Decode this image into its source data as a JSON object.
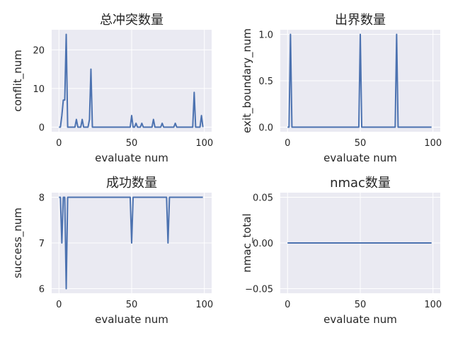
{
  "chart_data": [
    {
      "type": "line",
      "title": "总冲突数量",
      "xlabel": "evaluate num",
      "ylabel": "conflit_num",
      "xlim": [
        -5,
        105
      ],
      "ylim": [
        -1.2,
        25.2
      ],
      "xticks": [
        0,
        50,
        100
      ],
      "xtick_labels": [
        "0",
        "50",
        "100"
      ],
      "yticks": [
        0,
        10,
        20
      ],
      "ytick_labels": [
        "0",
        "10",
        "20"
      ],
      "grid": true,
      "color": "#4c72b0",
      "x": [
        0,
        1,
        2,
        3,
        4,
        5,
        6,
        7,
        8,
        9,
        10,
        11,
        12,
        13,
        14,
        15,
        16,
        17,
        18,
        19,
        20,
        21,
        22,
        23,
        24,
        25,
        26,
        27,
        28,
        29,
        30,
        31,
        32,
        33,
        34,
        35,
        36,
        37,
        38,
        39,
        40,
        41,
        42,
        43,
        44,
        45,
        46,
        47,
        48,
        49,
        50,
        51,
        52,
        53,
        54,
        55,
        56,
        57,
        58,
        59,
        60,
        61,
        62,
        63,
        64,
        65,
        66,
        67,
        68,
        69,
        70,
        71,
        72,
        73,
        74,
        75,
        76,
        77,
        78,
        79,
        80,
        81,
        82,
        83,
        84,
        85,
        86,
        87,
        88,
        89,
        90,
        91,
        92,
        93,
        94,
        95,
        96,
        97,
        98,
        99
      ],
      "y": [
        0,
        0,
        3,
        7,
        7,
        24,
        0,
        0,
        0,
        0,
        0,
        0,
        2,
        0,
        0,
        0,
        2,
        0,
        0,
        0,
        0,
        2,
        15,
        0,
        0,
        0,
        0,
        0,
        0,
        0,
        0,
        0,
        0,
        0,
        0,
        0,
        0,
        0,
        0,
        0,
        0,
        0,
        0,
        0,
        0,
        0,
        0,
        0,
        0,
        0,
        3,
        0,
        0,
        1,
        0,
        0,
        0,
        1,
        0,
        0,
        0,
        0,
        0,
        0,
        0,
        2,
        0,
        0,
        0,
        0,
        0,
        1,
        0,
        0,
        0,
        0,
        0,
        0,
        0,
        0,
        1,
        0,
        0,
        0,
        0,
        0,
        0,
        0,
        0,
        0,
        0,
        0,
        0,
        9,
        0,
        0,
        0,
        0,
        3,
        0
      ]
    },
    {
      "type": "line",
      "title": "出界数量",
      "xlabel": "evaluate num",
      "ylabel": "exit_boundary_num",
      "xlim": [
        -5,
        105
      ],
      "ylim": [
        -0.05,
        1.05
      ],
      "xticks": [
        0,
        50,
        100
      ],
      "xtick_labels": [
        "0",
        "50",
        "100"
      ],
      "yticks": [
        0,
        0.5,
        1
      ],
      "ytick_labels": [
        "0.0",
        "0.5",
        "1.0"
      ],
      "grid": true,
      "color": "#4c72b0",
      "x": [
        0,
        1,
        2,
        3,
        4,
        5,
        6,
        7,
        8,
        9,
        10,
        11,
        12,
        13,
        14,
        15,
        16,
        17,
        18,
        19,
        20,
        21,
        22,
        23,
        24,
        25,
        26,
        27,
        28,
        29,
        30,
        31,
        32,
        33,
        34,
        35,
        36,
        37,
        38,
        39,
        40,
        41,
        42,
        43,
        44,
        45,
        46,
        47,
        48,
        49,
        50,
        51,
        52,
        53,
        54,
        55,
        56,
        57,
        58,
        59,
        60,
        61,
        62,
        63,
        64,
        65,
        66,
        67,
        68,
        69,
        70,
        71,
        72,
        73,
        74,
        75,
        76,
        77,
        78,
        79,
        80,
        81,
        82,
        83,
        84,
        85,
        86,
        87,
        88,
        89,
        90,
        91,
        92,
        93,
        94,
        95,
        96,
        97,
        98,
        99
      ],
      "y": [
        0,
        0,
        1,
        0,
        0,
        0,
        0,
        0,
        0,
        0,
        0,
        0,
        0,
        0,
        0,
        0,
        0,
        0,
        0,
        0,
        0,
        0,
        0,
        0,
        0,
        0,
        0,
        0,
        0,
        0,
        0,
        0,
        0,
        0,
        0,
        0,
        0,
        0,
        0,
        0,
        0,
        0,
        0,
        0,
        0,
        0,
        0,
        0,
        0,
        0,
        1,
        0,
        0,
        0,
        0,
        0,
        0,
        0,
        0,
        0,
        0,
        0,
        0,
        0,
        0,
        0,
        0,
        0,
        0,
        0,
        0,
        0,
        0,
        0,
        0,
        1,
        0,
        0,
        0,
        0,
        0,
        0,
        0,
        0,
        0,
        0,
        0,
        0,
        0,
        0,
        0,
        0,
        0,
        0,
        0,
        0,
        0,
        0,
        0,
        0
      ]
    },
    {
      "type": "line",
      "title": "成功数量",
      "xlabel": "evaluate num",
      "ylabel": "success_num",
      "xlim": [
        -5,
        105
      ],
      "ylim": [
        5.9,
        8.1
      ],
      "xticks": [
        0,
        50,
        100
      ],
      "xtick_labels": [
        "0",
        "50",
        "100"
      ],
      "yticks": [
        6,
        7,
        8
      ],
      "ytick_labels": [
        "6",
        "7",
        "8"
      ],
      "grid": true,
      "color": "#4c72b0",
      "x": [
        0,
        1,
        2,
        3,
        4,
        5,
        6,
        7,
        8,
        9,
        10,
        11,
        12,
        13,
        14,
        15,
        16,
        17,
        18,
        19,
        20,
        21,
        22,
        23,
        24,
        25,
        26,
        27,
        28,
        29,
        30,
        31,
        32,
        33,
        34,
        35,
        36,
        37,
        38,
        39,
        40,
        41,
        42,
        43,
        44,
        45,
        46,
        47,
        48,
        49,
        50,
        51,
        52,
        53,
        54,
        55,
        56,
        57,
        58,
        59,
        60,
        61,
        62,
        63,
        64,
        65,
        66,
        67,
        68,
        69,
        70,
        71,
        72,
        73,
        74,
        75,
        76,
        77,
        78,
        79,
        80,
        81,
        82,
        83,
        84,
        85,
        86,
        87,
        88,
        89,
        90,
        91,
        92,
        93,
        94,
        95,
        96,
        97,
        98,
        99
      ],
      "y": [
        8,
        8,
        7,
        8,
        8,
        6,
        8,
        8,
        8,
        8,
        8,
        8,
        8,
        8,
        8,
        8,
        8,
        8,
        8,
        8,
        8,
        8,
        8,
        8,
        8,
        8,
        8,
        8,
        8,
        8,
        8,
        8,
        8,
        8,
        8,
        8,
        8,
        8,
        8,
        8,
        8,
        8,
        8,
        8,
        8,
        8,
        8,
        8,
        8,
        8,
        7,
        8,
        8,
        8,
        8,
        8,
        8,
        8,
        8,
        8,
        8,
        8,
        8,
        8,
        8,
        8,
        8,
        8,
        8,
        8,
        8,
        8,
        8,
        8,
        8,
        7,
        8,
        8,
        8,
        8,
        8,
        8,
        8,
        8,
        8,
        8,
        8,
        8,
        8,
        8,
        8,
        8,
        8,
        8,
        8,
        8,
        8,
        8,
        8,
        8
      ]
    },
    {
      "type": "line",
      "title": "nmac数量",
      "xlabel": "evaluate num",
      "ylabel": "nmac_total",
      "xlim": [
        -5,
        105
      ],
      "ylim": [
        -0.055,
        0.055
      ],
      "xticks": [
        0,
        50,
        100
      ],
      "xtick_labels": [
        "0",
        "50",
        "100"
      ],
      "yticks": [
        -0.05,
        0,
        0.05
      ],
      "ytick_labels": [
        "−0.05",
        "0.00",
        "0.05"
      ],
      "grid": true,
      "color": "#4c72b0",
      "x": [
        0,
        99
      ],
      "y": [
        0,
        0
      ]
    }
  ]
}
